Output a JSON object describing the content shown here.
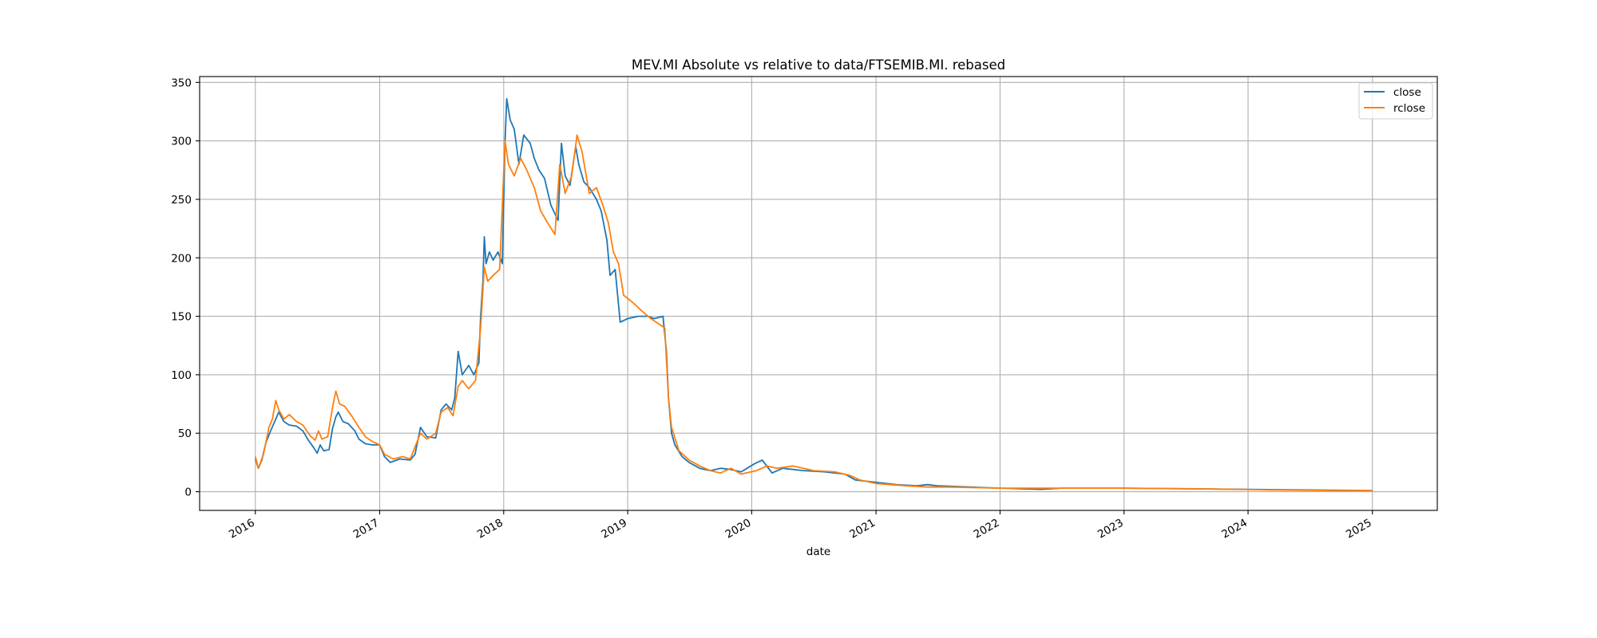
{
  "chart_data": {
    "type": "line",
    "title": "MEV.MI Absolute vs relative to data/FTSEMIB.MI. rebased",
    "xlabel": "date",
    "ylabel": "",
    "x_ticks": [
      "2016",
      "2017",
      "2018",
      "2019",
      "2020",
      "2021",
      "2022",
      "2023",
      "2024",
      "2025"
    ],
    "y_ticks": [
      0,
      50,
      100,
      150,
      200,
      250,
      300,
      350
    ],
    "xlim": [
      "2015-07-21",
      "2025-07-11"
    ],
    "ylim": [
      -16,
      355
    ],
    "grid": true,
    "legend_position": "top-right",
    "series": [
      {
        "name": "close",
        "color": "#1f77b4",
        "points": [
          [
            "2016-01-01",
            28
          ],
          [
            "2016-01-10",
            20
          ],
          [
            "2016-01-20",
            27
          ],
          [
            "2016-02-01",
            42
          ],
          [
            "2016-02-15",
            52
          ],
          [
            "2016-03-01",
            62
          ],
          [
            "2016-03-10",
            68
          ],
          [
            "2016-03-25",
            60
          ],
          [
            "2016-04-10",
            57
          ],
          [
            "2016-05-01",
            56
          ],
          [
            "2016-05-20",
            52
          ],
          [
            "2016-06-05",
            44
          ],
          [
            "2016-06-20",
            38
          ],
          [
            "2016-07-01",
            33
          ],
          [
            "2016-07-10",
            40
          ],
          [
            "2016-07-20",
            35
          ],
          [
            "2016-08-05",
            36
          ],
          [
            "2016-08-15",
            54
          ],
          [
            "2016-08-25",
            64
          ],
          [
            "2016-09-01",
            68
          ],
          [
            "2016-09-15",
            60
          ],
          [
            "2016-10-01",
            58
          ],
          [
            "2016-10-20",
            52
          ],
          [
            "2016-11-01",
            45
          ],
          [
            "2016-11-20",
            41
          ],
          [
            "2016-12-10",
            40
          ],
          [
            "2017-01-01",
            40
          ],
          [
            "2017-01-15",
            30
          ],
          [
            "2017-02-01",
            25
          ],
          [
            "2017-03-01",
            28
          ],
          [
            "2017-04-01",
            27
          ],
          [
            "2017-04-15",
            32
          ],
          [
            "2017-05-01",
            55
          ],
          [
            "2017-05-20",
            47
          ],
          [
            "2017-06-15",
            46
          ],
          [
            "2017-07-01",
            70
          ],
          [
            "2017-07-15",
            75
          ],
          [
            "2017-08-01",
            70
          ],
          [
            "2017-08-10",
            80
          ],
          [
            "2017-08-20",
            120
          ],
          [
            "2017-09-01",
            100
          ],
          [
            "2017-09-20",
            108
          ],
          [
            "2017-10-05",
            100
          ],
          [
            "2017-10-20",
            110
          ],
          [
            "2017-10-25",
            150
          ],
          [
            "2017-11-01",
            180
          ],
          [
            "2017-11-05",
            218
          ],
          [
            "2017-11-10",
            195
          ],
          [
            "2017-11-20",
            205
          ],
          [
            "2017-12-01",
            198
          ],
          [
            "2017-12-15",
            205
          ],
          [
            "2017-12-28",
            195
          ],
          [
            "2018-01-05",
            300
          ],
          [
            "2018-01-10",
            336
          ],
          [
            "2018-01-20",
            318
          ],
          [
            "2018-02-01",
            310
          ],
          [
            "2018-02-15",
            280
          ],
          [
            "2018-03-01",
            305
          ],
          [
            "2018-03-20",
            298
          ],
          [
            "2018-04-01",
            285
          ],
          [
            "2018-04-15",
            275
          ],
          [
            "2018-05-01",
            268
          ],
          [
            "2018-05-20",
            245
          ],
          [
            "2018-06-10",
            232
          ],
          [
            "2018-06-20",
            298
          ],
          [
            "2018-07-01",
            270
          ],
          [
            "2018-07-15",
            262
          ],
          [
            "2018-08-01",
            295
          ],
          [
            "2018-08-10",
            280
          ],
          [
            "2018-08-25",
            265
          ],
          [
            "2018-09-10",
            260
          ],
          [
            "2018-10-01",
            250
          ],
          [
            "2018-10-15",
            240
          ],
          [
            "2018-11-01",
            215
          ],
          [
            "2018-11-10",
            185
          ],
          [
            "2018-11-25",
            190
          ],
          [
            "2018-12-10",
            145
          ],
          [
            "2019-01-01",
            148
          ],
          [
            "2019-02-01",
            150
          ],
          [
            "2019-03-01",
            150
          ],
          [
            "2019-03-20",
            148
          ],
          [
            "2019-04-15",
            150
          ],
          [
            "2019-04-25",
            120
          ],
          [
            "2019-05-01",
            80
          ],
          [
            "2019-05-10",
            50
          ],
          [
            "2019-05-20",
            40
          ],
          [
            "2019-06-10",
            30
          ],
          [
            "2019-07-01",
            25
          ],
          [
            "2019-08-01",
            20
          ],
          [
            "2019-09-01",
            18
          ],
          [
            "2019-10-01",
            20
          ],
          [
            "2019-11-01",
            19
          ],
          [
            "2019-12-01",
            17
          ],
          [
            "2020-01-10",
            24
          ],
          [
            "2020-02-01",
            27
          ],
          [
            "2020-03-01",
            16
          ],
          [
            "2020-04-01",
            20
          ],
          [
            "2020-06-01",
            18
          ],
          [
            "2020-08-01",
            17
          ],
          [
            "2020-10-01",
            15
          ],
          [
            "2020-11-01",
            10
          ],
          [
            "2021-01-01",
            8
          ],
          [
            "2021-03-01",
            6
          ],
          [
            "2021-05-01",
            5
          ],
          [
            "2021-06-01",
            6
          ],
          [
            "2021-07-01",
            5
          ],
          [
            "2021-10-01",
            4
          ],
          [
            "2022-01-01",
            3
          ],
          [
            "2022-05-01",
            2
          ],
          [
            "2022-07-01",
            3
          ],
          [
            "2023-01-01",
            3
          ],
          [
            "2023-07-01",
            2.5
          ],
          [
            "2024-01-01",
            2
          ],
          [
            "2024-06-01",
            1.5
          ],
          [
            "2025-01-01",
            1
          ]
        ]
      },
      {
        "name": "rclose",
        "color": "#ff7f0e",
        "points": [
          [
            "2016-01-01",
            30
          ],
          [
            "2016-01-10",
            20
          ],
          [
            "2016-01-25",
            32
          ],
          [
            "2016-02-10",
            55
          ],
          [
            "2016-02-20",
            62
          ],
          [
            "2016-03-01",
            78
          ],
          [
            "2016-03-10",
            70
          ],
          [
            "2016-03-25",
            62
          ],
          [
            "2016-04-10",
            66
          ],
          [
            "2016-05-01",
            60
          ],
          [
            "2016-05-20",
            57
          ],
          [
            "2016-06-10",
            48
          ],
          [
            "2016-06-25",
            44
          ],
          [
            "2016-07-05",
            52
          ],
          [
            "2016-07-15",
            45
          ],
          [
            "2016-08-01",
            47
          ],
          [
            "2016-08-15",
            72
          ],
          [
            "2016-08-25",
            86
          ],
          [
            "2016-09-05",
            75
          ],
          [
            "2016-09-20",
            73
          ],
          [
            "2016-10-10",
            65
          ],
          [
            "2016-11-01",
            55
          ],
          [
            "2016-11-20",
            47
          ],
          [
            "2016-12-10",
            43
          ],
          [
            "2017-01-01",
            40
          ],
          [
            "2017-01-15",
            32
          ],
          [
            "2017-02-10",
            28
          ],
          [
            "2017-03-10",
            30
          ],
          [
            "2017-04-01",
            28
          ],
          [
            "2017-05-01",
            50
          ],
          [
            "2017-05-20",
            45
          ],
          [
            "2017-06-15",
            50
          ],
          [
            "2017-07-01",
            68
          ],
          [
            "2017-07-20",
            72
          ],
          [
            "2017-08-05",
            65
          ],
          [
            "2017-08-20",
            90
          ],
          [
            "2017-09-01",
            95
          ],
          [
            "2017-09-20",
            88
          ],
          [
            "2017-10-10",
            95
          ],
          [
            "2017-10-25",
            140
          ],
          [
            "2017-11-05",
            192
          ],
          [
            "2017-11-15",
            180
          ],
          [
            "2017-12-01",
            185
          ],
          [
            "2017-12-20",
            190
          ],
          [
            "2018-01-05",
            300
          ],
          [
            "2018-01-15",
            280
          ],
          [
            "2018-02-01",
            270
          ],
          [
            "2018-02-20",
            285
          ],
          [
            "2018-03-10",
            275
          ],
          [
            "2018-04-01",
            260
          ],
          [
            "2018-04-20",
            240
          ],
          [
            "2018-05-10",
            230
          ],
          [
            "2018-06-01",
            220
          ],
          [
            "2018-06-15",
            280
          ],
          [
            "2018-07-01",
            255
          ],
          [
            "2018-07-20",
            270
          ],
          [
            "2018-08-05",
            305
          ],
          [
            "2018-08-20",
            290
          ],
          [
            "2018-09-10",
            255
          ],
          [
            "2018-10-01",
            260
          ],
          [
            "2018-10-20",
            245
          ],
          [
            "2018-11-05",
            230
          ],
          [
            "2018-11-20",
            205
          ],
          [
            "2018-12-05",
            195
          ],
          [
            "2018-12-20",
            168
          ],
          [
            "2019-01-15",
            162
          ],
          [
            "2019-02-10",
            155
          ],
          [
            "2019-03-10",
            148
          ],
          [
            "2019-04-10",
            142
          ],
          [
            "2019-04-20",
            140
          ],
          [
            "2019-05-01",
            80
          ],
          [
            "2019-05-10",
            55
          ],
          [
            "2019-06-01",
            35
          ],
          [
            "2019-07-01",
            27
          ],
          [
            "2019-08-01",
            22
          ],
          [
            "2019-09-01",
            18
          ],
          [
            "2019-10-01",
            16
          ],
          [
            "2019-11-01",
            20
          ],
          [
            "2019-12-01",
            15
          ],
          [
            "2020-01-15",
            18
          ],
          [
            "2020-02-15",
            22
          ],
          [
            "2020-03-15",
            20
          ],
          [
            "2020-05-01",
            22
          ],
          [
            "2020-07-01",
            18
          ],
          [
            "2020-09-01",
            17
          ],
          [
            "2020-10-15",
            14
          ],
          [
            "2020-11-15",
            10
          ],
          [
            "2021-01-01",
            7
          ],
          [
            "2021-04-01",
            5
          ],
          [
            "2021-06-01",
            4
          ],
          [
            "2021-08-01",
            4
          ],
          [
            "2022-01-01",
            3
          ],
          [
            "2022-06-01",
            3
          ],
          [
            "2022-09-01",
            3
          ],
          [
            "2023-01-01",
            3
          ],
          [
            "2023-08-01",
            2.5
          ],
          [
            "2024-03-01",
            1.5
          ],
          [
            "2024-09-01",
            1
          ],
          [
            "2025-01-01",
            1
          ]
        ]
      }
    ]
  }
}
